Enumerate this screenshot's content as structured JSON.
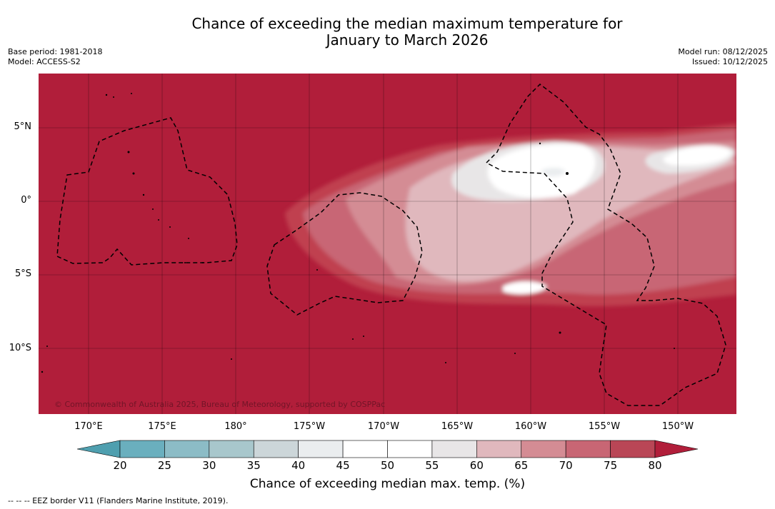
{
  "title": {
    "line1": "Chance of exceeding the median maximum temperature for",
    "line2": "January to March 2026"
  },
  "info_left": {
    "base_period": "Base period: 1981-2018",
    "model": "Model: ACCESS-S2"
  },
  "info_right": {
    "model_run": "Model run: 08/12/2025",
    "issued": "Issued: 10/12/2025"
  },
  "map": {
    "copyright": "© Commonwealth of Australia 2025, Bureau of Meteorology, supported by COSPPac",
    "lat_labels": [
      "5°N",
      "0°",
      "5°S",
      "10°S"
    ],
    "lon_labels": [
      "170°E",
      "175°E",
      "180°",
      "175°W",
      "170°W",
      "165°W",
      "160°W",
      "155°W",
      "150°W"
    ]
  },
  "colorbar": {
    "ticks": [
      "20",
      "25",
      "30",
      "35",
      "40",
      "45",
      "50",
      "55",
      "60",
      "65",
      "70",
      "75",
      "80"
    ],
    "colors": [
      "#4f9faf",
      "#6aafbe",
      "#8cbcc6",
      "#a8c7cc",
      "#ccd6d9",
      "#eaedef",
      "#ffffff",
      "#ffffff",
      "#e8e6e7",
      "#e0b8bd",
      "#d48c94",
      "#c86674",
      "#b94656",
      "#b11e3a"
    ],
    "label": "Chance of exceeding median max. temp. (%)"
  },
  "footer": "--  --  -- EEZ border V11 (Flanders Marine Institute, 2019)."
}
